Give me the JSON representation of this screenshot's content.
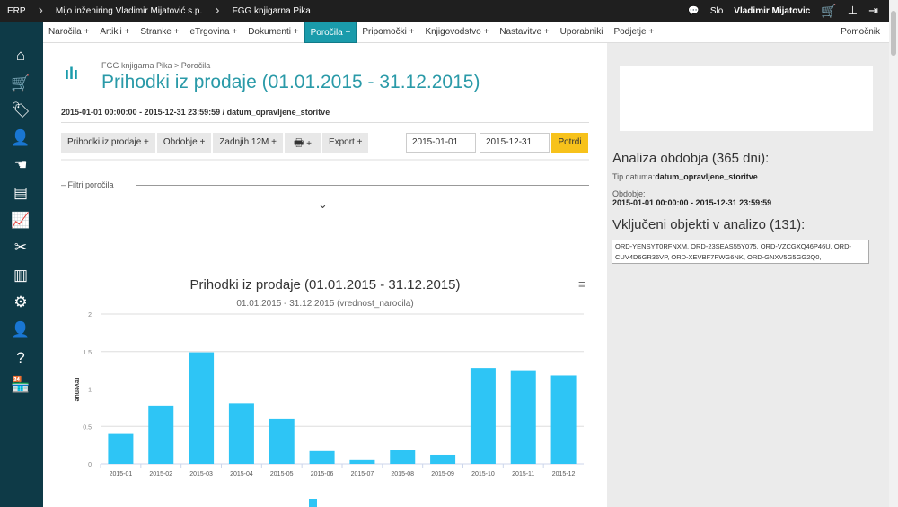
{
  "topbar": {
    "app": "ERP",
    "company": "Mijo inženiring Vladimir Mijatović s.p.",
    "unit": "FGG knjigarna Pika",
    "lang": "Slo",
    "user": "Vladimir Mijatovic"
  },
  "nav": {
    "items": [
      "Naročila +",
      "Artikli +",
      "Stranke +",
      "eTrgovina +",
      "Dokumenti +",
      "Poročila +",
      "Pripomočki +",
      "Knjigovodstvo +",
      "Nastavitve +",
      "Uporabniki",
      "Podjetje +"
    ],
    "active": "Poročila +",
    "help": "Pomočnik"
  },
  "sidebar": {
    "icons": [
      "home-icon",
      "cart-icon",
      "tag-icon",
      "user-icon",
      "hand-icon",
      "archive-icon",
      "chart-icon",
      "tools-icon",
      "coins-icon",
      "gears-icon",
      "user-icon",
      "help-chat-icon",
      "store-icon"
    ]
  },
  "page": {
    "breadcrumb": [
      "FGG knjigarna Pika",
      "Poročila"
    ],
    "title": "Prihodki iz prodaje (01.01.2015 - 31.12.2015)",
    "period_range": "2015-01-01 00:00:00 - 2015-12-31 23:59:59",
    "period_type": "datum_opravljene_storitve",
    "toolbar": {
      "report": "Prihodki iz prodaje +",
      "period": "Obdobje +",
      "last12": "Zadnjih 12M +",
      "print_plus": "+",
      "export": "Export +"
    },
    "date_from": "2015-01-01",
    "date_to": "2015-12-31",
    "confirm": "Potrdi",
    "filters": "Filtri poročila"
  },
  "chart_data": {
    "type": "bar",
    "title": "Prihodki iz prodaje (01.01.2015 - 31.12.2015)",
    "subtitle": "01.01.2015 - 31.12.2015 (vrednost_narocila)",
    "ylabel": "revenue",
    "xlabel": "",
    "categories": [
      "2015-01",
      "2015-02",
      "2015-03",
      "2015-04",
      "2015-05",
      "2015-06",
      "2015-07",
      "2015-08",
      "2015-09",
      "2015-10",
      "2015-11",
      "2015-12"
    ],
    "values": [
      0.4,
      0.78,
      1.49,
      0.81,
      0.6,
      0.17,
      0.05,
      0.19,
      0.12,
      1.28,
      1.25,
      1.18
    ],
    "yticks": [
      "0",
      "0.5",
      "1",
      "1.5",
      "2"
    ],
    "ylim": [
      0,
      2
    ],
    "grid": true,
    "legend": "bottom",
    "color": "#2ec5f5"
  },
  "right": {
    "analysis_title": "Analiza obdobja (365 dni):",
    "date_type_label": "Tip datuma:",
    "date_type": "datum_opravljene_storitve",
    "period_label": "Obdobje:",
    "period": "2015-01-01 00:00:00 - 2015-12-31 23:59:59",
    "objects_title": "Vključeni objekti v analizo (131):",
    "objects": "ORD-YENSYT0RFNXM, ORD-23SEAS55Y075, ORD-VZCGXQ46P46U, ORD-CUV4D6GR36VP, ORD-XEVBF7PWG6NK, ORD-GNXV5G5GG2Q0,"
  },
  "colors": {
    "accent": "#1a9bab",
    "confirm": "#f7c21b",
    "sidebar": "#0e3a47"
  }
}
